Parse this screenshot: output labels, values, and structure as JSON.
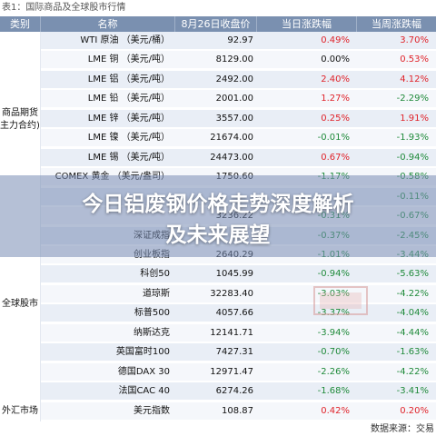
{
  "caption": "表1：国际商品及全球股市行情",
  "header": {
    "col_category": "类别",
    "col_name": "名称",
    "col_price": "8月26日收盘价",
    "col_day": "当日涨跌幅",
    "col_week": "当周涨跌幅"
  },
  "categories": [
    {
      "label": "商品期货\n主力合约)"
    },
    {
      "label": "全球股市"
    },
    {
      "label": "外汇市场"
    }
  ],
  "rows": [
    {
      "name": "WTI 原油 （美元/桶）",
      "price": "92.97",
      "day": "0.49%",
      "week": "3.70%"
    },
    {
      "name": "LME 铜 （美元/吨）",
      "price": "8129.00",
      "day": "0.00%",
      "week": "0.53%"
    },
    {
      "name": "LME 铝 （美元/吨）",
      "price": "2492.00",
      "day": "2.40%",
      "week": "4.12%"
    },
    {
      "name": "LME 铅 （美元/吨）",
      "price": "2001.00",
      "day": "1.27%",
      "week": "-2.29%"
    },
    {
      "name": "LME 锌 （美元/吨）",
      "price": "3557.00",
      "day": "0.25%",
      "week": "1.91%"
    },
    {
      "name": "LME 镍 （美元/吨）",
      "price": "21674.00",
      "day": "-0.01%",
      "week": "-1.93%"
    },
    {
      "name": "LME 锡 （美元/吨）",
      "price": "24473.00",
      "day": "0.67%",
      "week": "-0.94%"
    },
    {
      "name": "COMEX 黄金 （美元/盎司）",
      "price": "1750.60",
      "day": "-1.17%",
      "week": "-0.58%"
    },
    {
      "name": "",
      "price": "",
      "day": "",
      "week": "-0.11%"
    },
    {
      "name": "",
      "price": "3236.22",
      "day": "-0.31%",
      "week": "-0.67%"
    },
    {
      "name": "深证成指",
      "price": "",
      "day": "-0.37%",
      "week": "-2.45%"
    },
    {
      "name": "创业板指",
      "price": "2640.29",
      "day": "-1.01%",
      "week": "-3.44%"
    },
    {
      "name": "科创50",
      "price": "1045.99",
      "day": "-0.94%",
      "week": "-5.63%"
    },
    {
      "name": "道琼斯",
      "price": "32283.40",
      "day": "-3.03%",
      "week": "-4.22%"
    },
    {
      "name": "标普500",
      "price": "4057.66",
      "day": "-3.37%",
      "week": "-4.04%"
    },
    {
      "name": "纳斯达克",
      "price": "12141.71",
      "day": "-3.94%",
      "week": "-4.44%"
    },
    {
      "name": "英国富时100",
      "price": "7427.31",
      "day": "-0.70%",
      "week": "-1.63%"
    },
    {
      "name": "德国DAX 30",
      "price": "12971.47",
      "day": "-2.26%",
      "week": "-4.22%"
    },
    {
      "name": "法国CAC 40",
      "price": "6274.26",
      "day": "-1.68%",
      "week": "-3.41%"
    },
    {
      "name": "美元指数",
      "price": "108.87",
      "day": "0.42%",
      "week": "0.20%"
    }
  ],
  "overlay": {
    "line1": "今日铝废钢价格走势深度解析",
    "line2": "及未来展望"
  },
  "footer": "数据来源：交易",
  "colors": {
    "up": "#e0232a",
    "down": "#1f8a3a",
    "header": "#7a90b0"
  }
}
